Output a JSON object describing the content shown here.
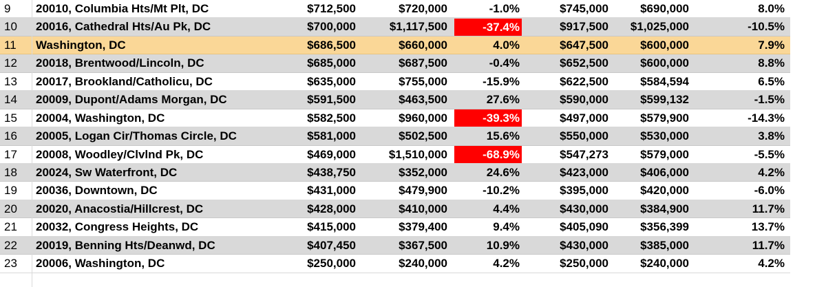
{
  "rows": [
    {
      "num": "9",
      "zip": "20010, Columbia Hts/Mt Plt, DC",
      "a": "$712,500",
      "b": "$720,000",
      "c": "-1.0%",
      "d": "$745,000",
      "e": "$690,000",
      "f": "8.0%",
      "style": "plain",
      "alert": false
    },
    {
      "num": "10",
      "zip": "20016, Cathedral Hts/Au Pk, DC",
      "a": "$700,000",
      "b": "$1,117,500",
      "c": "-37.4%",
      "d": "$917,500",
      "e": "$1,025,000",
      "f": "-10.5%",
      "style": "shaded",
      "alert": true
    },
    {
      "num": "11",
      "zip": "Washington, DC",
      "a": "$686,500",
      "b": "$660,000",
      "c": "4.0%",
      "d": "$647,500",
      "e": "$600,000",
      "f": "7.9%",
      "style": "highlight",
      "alert": false
    },
    {
      "num": "12",
      "zip": "20018, Brentwood/Lincoln, DC",
      "a": "$685,000",
      "b": "$687,500",
      "c": "-0.4%",
      "d": "$652,500",
      "e": "$600,000",
      "f": "8.8%",
      "style": "shaded",
      "alert": false
    },
    {
      "num": "13",
      "zip": "20017, Brookland/Catholicu, DC",
      "a": "$635,000",
      "b": "$755,000",
      "c": "-15.9%",
      "d": "$622,500",
      "e": "$584,594",
      "f": "6.5%",
      "style": "plain",
      "alert": false
    },
    {
      "num": "14",
      "zip": "20009, Dupont/Adams Morgan, DC",
      "a": "$591,500",
      "b": "$463,500",
      "c": "27.6%",
      "d": "$590,000",
      "e": "$599,132",
      "f": "-1.5%",
      "style": "shaded",
      "alert": false
    },
    {
      "num": "15",
      "zip": "20004, Washington, DC",
      "a": "$582,500",
      "b": "$960,000",
      "c": "-39.3%",
      "d": "$497,000",
      "e": "$579,900",
      "f": "-14.3%",
      "style": "plain",
      "alert": true
    },
    {
      "num": "16",
      "zip": "20005, Logan Cir/Thomas Circle, DC",
      "a": "$581,000",
      "b": "$502,500",
      "c": "15.6%",
      "d": "$550,000",
      "e": "$530,000",
      "f": "3.8%",
      "style": "shaded",
      "alert": false
    },
    {
      "num": "17",
      "zip": "20008, Woodley/Clvlnd Pk, DC",
      "a": "$469,000",
      "b": "$1,510,000",
      "c": "-68.9%",
      "d": "$547,273",
      "e": "$579,000",
      "f": "-5.5%",
      "style": "plain",
      "alert": true
    },
    {
      "num": "18",
      "zip": "20024, Sw Waterfront, DC",
      "a": "$438,750",
      "b": "$352,000",
      "c": "24.6%",
      "d": "$423,000",
      "e": "$406,000",
      "f": "4.2%",
      "style": "shaded",
      "alert": false
    },
    {
      "num": "19",
      "zip": "20036, Downtown, DC",
      "a": "$431,000",
      "b": "$479,900",
      "c": "-10.2%",
      "d": "$395,000",
      "e": "$420,000",
      "f": "-6.0%",
      "style": "plain",
      "alert": false
    },
    {
      "num": "20",
      "zip": "20020, Anacostia/Hillcrest, DC",
      "a": "$428,000",
      "b": "$410,000",
      "c": "4.4%",
      "d": "$430,000",
      "e": "$384,900",
      "f": "11.7%",
      "style": "shaded",
      "alert": false
    },
    {
      "num": "21",
      "zip": "20032, Congress Heights, DC",
      "a": "$415,000",
      "b": "$379,400",
      "c": "9.4%",
      "d": "$405,090",
      "e": "$356,399",
      "f": "13.7%",
      "style": "plain",
      "alert": false
    },
    {
      "num": "22",
      "zip": "20019, Benning Hts/Deanwd, DC",
      "a": "$407,450",
      "b": "$367,500",
      "c": "10.9%",
      "d": "$430,000",
      "e": "$385,000",
      "f": "11.7%",
      "style": "shaded",
      "alert": false
    },
    {
      "num": "23",
      "zip": "20006, Washington, DC",
      "a": "$250,000",
      "b": "$240,000",
      "c": "4.2%",
      "d": "$250,000",
      "e": "$240,000",
      "f": "4.2%",
      "style": "plain",
      "alert": false
    }
  ],
  "colors": {
    "shaded_row": "#d9d9d9",
    "highlight_row": "#fad797",
    "alert_fill": "#ff0000",
    "alert_text": "#ffffff"
  }
}
